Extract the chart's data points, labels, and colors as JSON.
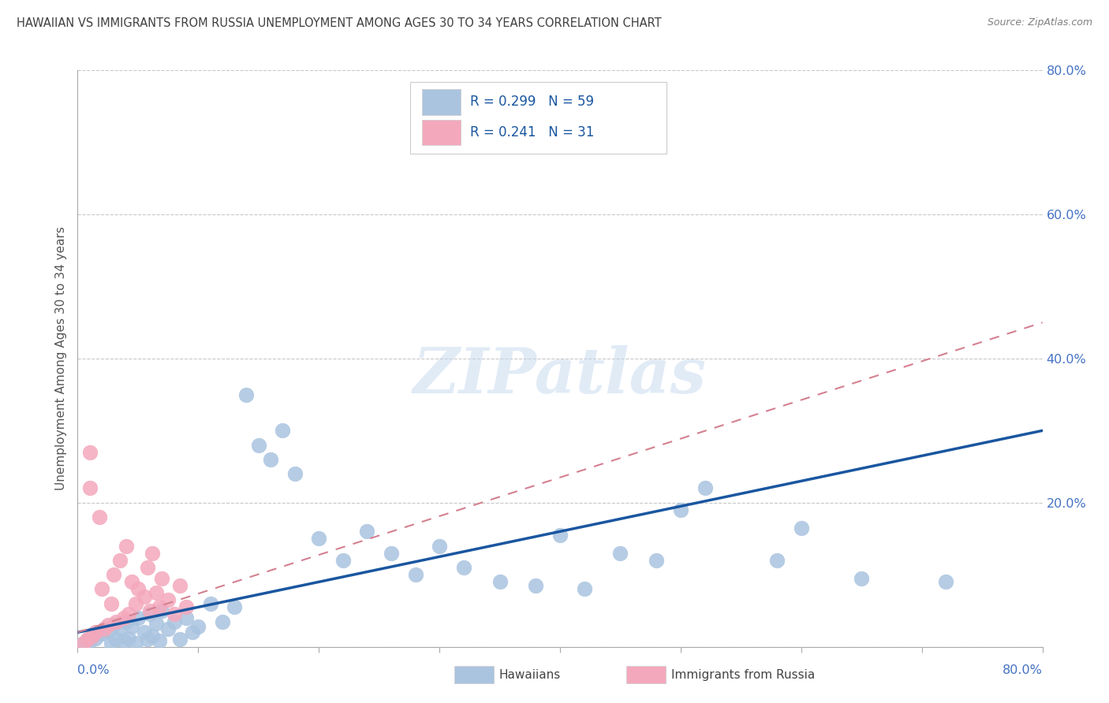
{
  "title": "HAWAIIAN VS IMMIGRANTS FROM RUSSIA UNEMPLOYMENT AMONG AGES 30 TO 34 YEARS CORRELATION CHART",
  "source": "Source: ZipAtlas.com",
  "ylabel": "Unemployment Among Ages 30 to 34 years",
  "R_hawaiian": 0.299,
  "N_hawaiian": 59,
  "R_russia": 0.241,
  "N_russia": 31,
  "watermark": "ZIPatlas",
  "blue_scatter_color": "#aac4e0",
  "pink_scatter_color": "#f4a8bc",
  "blue_line_color": "#1a56a0",
  "pink_line_color": "#d48090",
  "axis_label_color": "#4472c4",
  "title_color": "#404040",
  "source_color": "#808080",
  "ylabel_color": "#555555",
  "grid_color": "#c8c8c8",
  "legend_text_color": "#1a56a0",
  "blue_legend_fill": "#aac4e0",
  "pink_legend_fill": "#f4a8bc",
  "xlim": [
    0.0,
    0.8
  ],
  "ylim": [
    0.0,
    0.8
  ],
  "yticks": [
    0.0,
    0.2,
    0.4,
    0.6,
    0.8
  ],
  "xticks": [
    0.0,
    0.1,
    0.2,
    0.3,
    0.4,
    0.5,
    0.6,
    0.7,
    0.8
  ],
  "blue_trend_x0": 0.0,
  "blue_trend_y0": 0.02,
  "blue_trend_x1": 0.8,
  "blue_trend_y1": 0.3,
  "pink_trend_x0": 0.0,
  "pink_trend_y0": 0.02,
  "pink_trend_x1": 0.8,
  "pink_trend_y1": 0.45,
  "hawaiians_x": [
    0.005,
    0.008,
    0.01,
    0.012,
    0.015,
    0.018,
    0.02,
    0.022,
    0.025,
    0.028,
    0.03,
    0.032,
    0.035,
    0.038,
    0.04,
    0.042,
    0.045,
    0.048,
    0.05,
    0.055,
    0.058,
    0.06,
    0.062,
    0.065,
    0.068,
    0.07,
    0.075,
    0.08,
    0.085,
    0.09,
    0.095,
    0.1,
    0.11,
    0.12,
    0.13,
    0.14,
    0.15,
    0.16,
    0.17,
    0.18,
    0.2,
    0.22,
    0.24,
    0.26,
    0.28,
    0.3,
    0.32,
    0.35,
    0.38,
    0.4,
    0.42,
    0.45,
    0.48,
    0.5,
    0.52,
    0.58,
    0.6,
    0.65,
    0.72
  ],
  "hawaiians_y": [
    0.005,
    0.01,
    0.008,
    0.015,
    0.012,
    0.02,
    0.018,
    0.025,
    0.022,
    0.005,
    0.03,
    0.01,
    0.025,
    0.008,
    0.035,
    0.012,
    0.028,
    0.005,
    0.04,
    0.02,
    0.01,
    0.045,
    0.015,
    0.032,
    0.008,
    0.05,
    0.025,
    0.035,
    0.01,
    0.04,
    0.02,
    0.028,
    0.06,
    0.035,
    0.055,
    0.35,
    0.28,
    0.26,
    0.3,
    0.24,
    0.15,
    0.12,
    0.16,
    0.13,
    0.1,
    0.14,
    0.11,
    0.09,
    0.085,
    0.155,
    0.08,
    0.13,
    0.12,
    0.19,
    0.22,
    0.12,
    0.165,
    0.095,
    0.09
  ],
  "russia_x": [
    0.005,
    0.008,
    0.01,
    0.012,
    0.015,
    0.018,
    0.02,
    0.022,
    0.025,
    0.028,
    0.03,
    0.032,
    0.035,
    0.038,
    0.04,
    0.042,
    0.045,
    0.048,
    0.05,
    0.055,
    0.058,
    0.06,
    0.062,
    0.065,
    0.068,
    0.07,
    0.075,
    0.08,
    0.085,
    0.09,
    0.01
  ],
  "russia_y": [
    0.005,
    0.01,
    0.27,
    0.015,
    0.02,
    0.18,
    0.08,
    0.025,
    0.03,
    0.06,
    0.1,
    0.035,
    0.12,
    0.04,
    0.14,
    0.045,
    0.09,
    0.06,
    0.08,
    0.07,
    0.11,
    0.05,
    0.13,
    0.075,
    0.055,
    0.095,
    0.065,
    0.045,
    0.085,
    0.055,
    0.22
  ]
}
